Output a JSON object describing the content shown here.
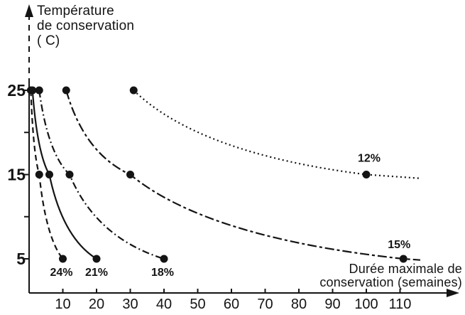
{
  "figure": {
    "y_axis_title_lines": [
      "Température",
      "de conservation",
      "( C)"
    ],
    "x_axis_title_lines": [
      "Durée maximale de",
      "conservation (semaines)"
    ]
  },
  "chart_data": {
    "type": "line",
    "title": "",
    "xlabel": "Durée maximale de conservation (semaines)",
    "ylabel": "Température de conservation ( C)",
    "x_range": [
      0,
      125
    ],
    "y_range": [
      1,
      30
    ],
    "grid": false,
    "legend": "labels-on-curves",
    "point_marker": "filled-circle",
    "line_color": "#141414",
    "x_ticks": [
      10,
      20,
      30,
      40,
      50,
      60,
      70,
      80,
      90,
      100,
      110
    ],
    "y_ticks": [
      {
        "value": 25,
        "label": "25"
      },
      {
        "value": 20,
        "label": ""
      },
      {
        "value": 15,
        "label": "15"
      },
      {
        "value": 10,
        "label": ""
      },
      {
        "value": 5,
        "label": "5"
      }
    ],
    "series": [
      {
        "name": "24%",
        "label": "24%",
        "style": "dashed",
        "label_position": "below",
        "label_offset": [
          -2,
          24
        ],
        "points": [
          {
            "temp_c": 25,
            "weeks": 0.5
          },
          {
            "temp_c": 15,
            "weeks": 3
          },
          {
            "temp_c": 5,
            "weeks": 10
          }
        ]
      },
      {
        "name": "21%",
        "label": "21%",
        "style": "solid",
        "label_position": "below",
        "label_offset": [
          0,
          24
        ],
        "points": [
          {
            "temp_c": 25,
            "weeks": 1
          },
          {
            "temp_c": 15,
            "weeks": 6
          },
          {
            "temp_c": 5,
            "weeks": 20
          }
        ]
      },
      {
        "name": "18%",
        "label": "18%",
        "style": "dash-dot",
        "label_position": "below",
        "label_offset": [
          -2,
          24
        ],
        "points": [
          {
            "temp_c": 25,
            "weeks": 3
          },
          {
            "temp_c": 15,
            "weeks": 12
          },
          {
            "temp_c": 5,
            "weeks": 40
          }
        ]
      },
      {
        "name": "15%",
        "label": "15%",
        "style": "long-dash-dot",
        "label_position": "above",
        "label_offset": [
          -6,
          -15
        ],
        "extends_beyond_last_point": true,
        "points": [
          {
            "temp_c": 25,
            "weeks": 11
          },
          {
            "temp_c": 15,
            "weeks": 30
          },
          {
            "temp_c": 5,
            "weeks": 111
          }
        ]
      },
      {
        "name": "12%",
        "label": "12%",
        "style": "dotted",
        "label_position": "above",
        "label_offset": [
          4,
          -18
        ],
        "extends_beyond_last_point": true,
        "points": [
          {
            "temp_c": 25,
            "weeks": 31
          },
          {
            "temp_c": 15,
            "weeks": 100
          }
        ]
      }
    ]
  }
}
